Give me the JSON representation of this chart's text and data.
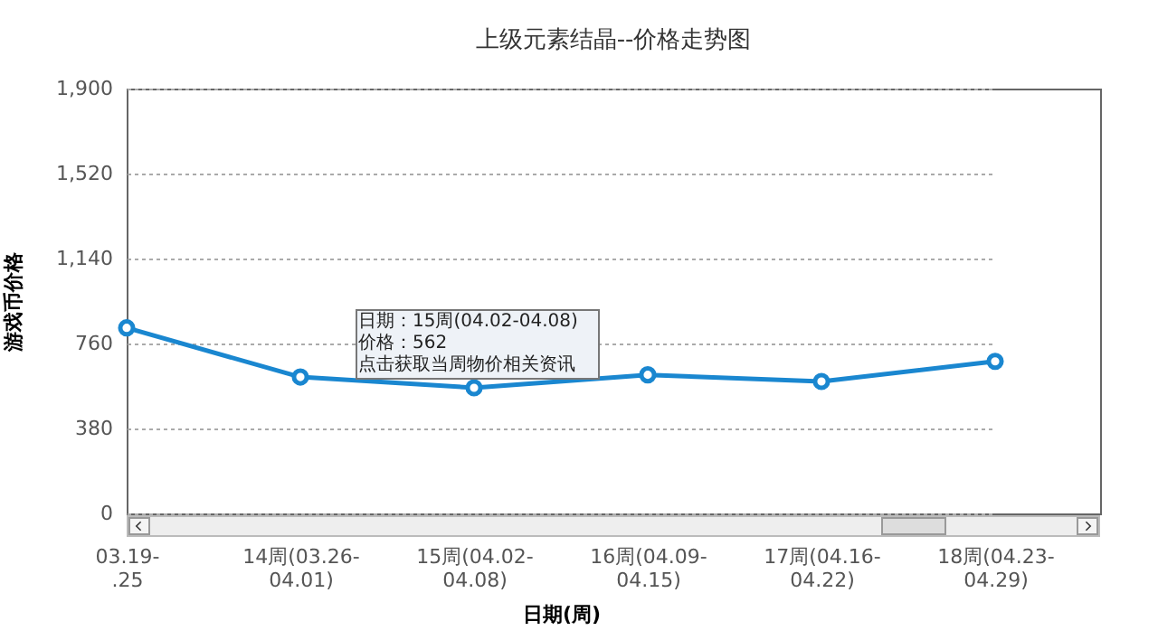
{
  "chart_data": {
    "type": "line",
    "title": "上级元素结晶--价格走势图",
    "xlabel": "日期(周)",
    "ylabel": "游戏币价格",
    "categories": [
      "03.19-.25",
      "14周(03.26-04.01)",
      "15周(04.02-04.08)",
      "16周(04.09-04.15)",
      "17周(04.16-04.22)",
      "18周(04.23-04.29)"
    ],
    "series": [
      {
        "color": "#1a87d0",
        "values": [
          830,
          610,
          562,
          620,
          590,
          680
        ]
      }
    ],
    "ylim": [
      0,
      1900
    ],
    "yticks": [
      0,
      {
        "value": 380,
        "label": "380"
      },
      {
        "value": 760,
        "label": "760"
      },
      {
        "value": 1140,
        "label": "1,140"
      },
      {
        "value": 1520,
        "label": "1,520"
      },
      {
        "value": 1900,
        "label": "1,900"
      }
    ],
    "grid": "y",
    "marker": "circle",
    "line_style": "solid",
    "annotations": [
      {
        "text": "日期：15周(04.02-04.08)\n价格：562\n点击获取当周物价相关资讯",
        "x": "15周(04.02-04.08)",
        "y": 562
      }
    ]
  }
}
